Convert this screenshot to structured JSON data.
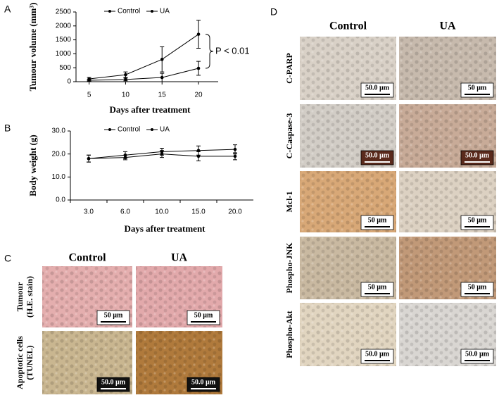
{
  "chart_data": [
    {
      "type": "line",
      "label": "A",
      "xlabel": "Days after treatment",
      "ylabel": "Tumour volume (mm³)",
      "x": [
        5,
        10,
        15,
        20
      ],
      "xlim": [
        3.2,
        22.7
      ],
      "xticks": [
        5,
        10,
        15,
        20
      ],
      "ylim": [
        0,
        2500
      ],
      "yticks": [
        0,
        500,
        1000,
        1500,
        2000,
        2500
      ],
      "series": [
        {
          "name": "Control",
          "color": "#000000",
          "values": [
            100,
            250,
            800,
            1700
          ],
          "errors": [
            50,
            100,
            450,
            500
          ]
        },
        {
          "name": "UA",
          "color": "#000000",
          "values": [
            50,
            80,
            150,
            480
          ],
          "errors": [
            30,
            50,
            150,
            250
          ]
        }
      ],
      "annotation": "P < 0.01"
    },
    {
      "type": "line",
      "label": "B",
      "xlabel": "Days after treatment",
      "ylabel": "Body weight (g)",
      "categories": [
        "3.0",
        "6.0",
        "10.0",
        "15.0",
        "20.0"
      ],
      "ylim": [
        0,
        30
      ],
      "yticks": [
        {
          "value": 0,
          "label": "0.0"
        },
        {
          "value": 10,
          "label": "10.0"
        },
        {
          "value": 20,
          "label": "20.0"
        },
        {
          "value": 30,
          "label": "30.0"
        }
      ],
      "series": [
        {
          "name": "Control",
          "color": "#000000",
          "values": [
            18,
            19.5,
            21,
            21.5,
            22
          ],
          "errors": [
            1.5,
            1.5,
            1.5,
            2,
            2
          ]
        },
        {
          "name": "UA",
          "color": "#000000",
          "values": [
            18,
            18.5,
            20,
            19,
            19
          ],
          "errors": [
            1.5,
            1,
            1.5,
            2,
            1.5
          ]
        }
      ]
    }
  ],
  "panel_c": {
    "label": "C",
    "columns": [
      "Control",
      "UA"
    ],
    "rows": [
      {
        "label": [
          "Tumour",
          "(H.E. stain)"
        ],
        "scale_bars": [
          "50 µm",
          "50 µm"
        ]
      },
      {
        "label": [
          "Apoptotic cells",
          "(TUNEL)"
        ],
        "scale_bars": [
          "50.0 µm",
          "50.0 µm"
        ]
      }
    ]
  },
  "panel_d": {
    "label": "D",
    "columns": [
      "Control",
      "UA"
    ],
    "rows": [
      {
        "label": [
          "C-PARP"
        ],
        "scale_bars": [
          "50.0 µm",
          "50 µm"
        ]
      },
      {
        "label": [
          "C-Caspase-3"
        ],
        "scale_bars": [
          "50.0 µm",
          "50.0 µm"
        ]
      },
      {
        "label": [
          "Mcl-1"
        ],
        "scale_bars": [
          "50 µm",
          "50 µm"
        ]
      },
      {
        "label": [
          "Phospho-JNK"
        ],
        "scale_bars": [
          "50 µm",
          "50 µm"
        ]
      },
      {
        "label": [
          "Phospho-Akt"
        ],
        "scale_bars": [
          "50.0 µm",
          "50.0 µm"
        ]
      }
    ]
  }
}
